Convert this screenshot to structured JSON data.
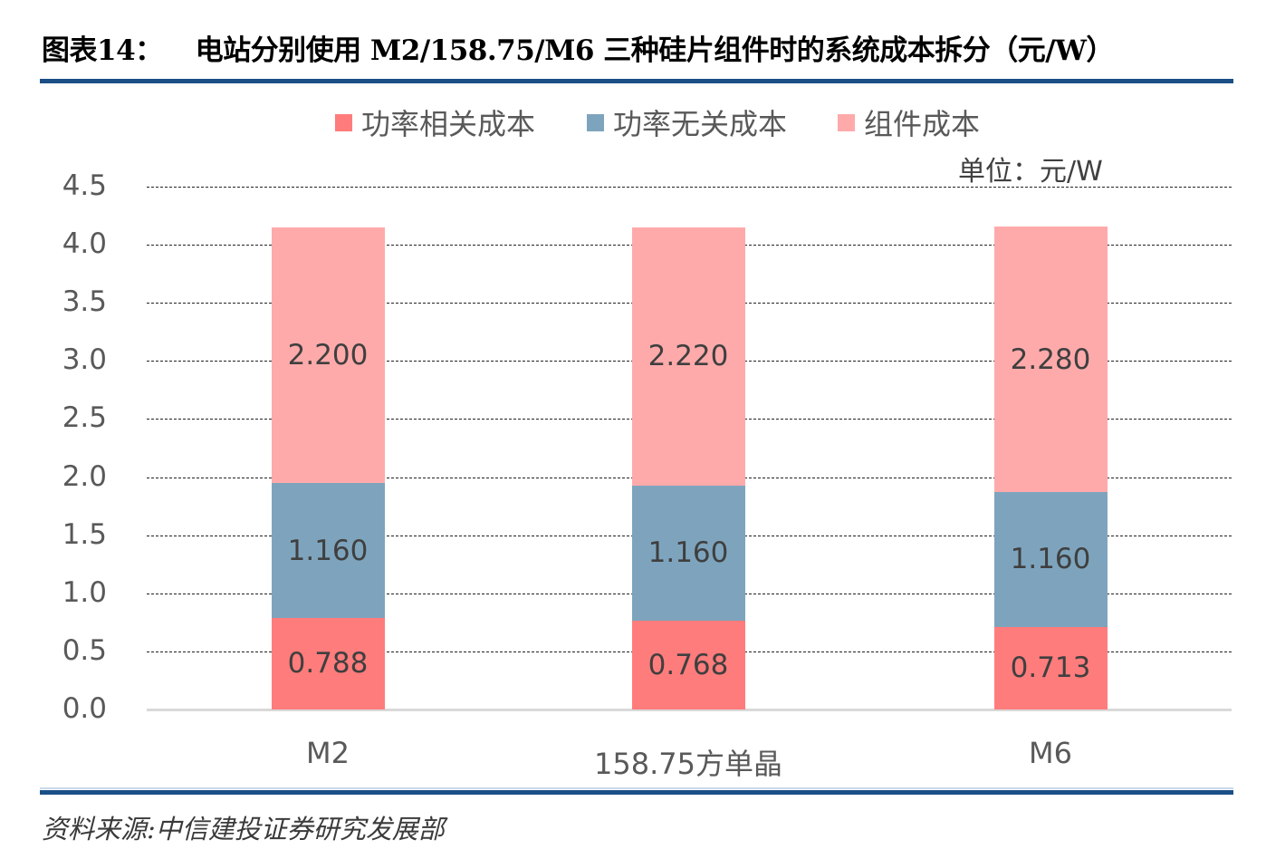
{
  "header": {
    "figure_number": "图表14：",
    "title": "电站分别使用 M2/158.75/M6 三种硅片组件时的系统成本拆分（元/W）"
  },
  "legend": [
    {
      "label": "功率相关成本",
      "color": "#ff7c7c"
    },
    {
      "label": "功率无关成本",
      "color": "#7ea4bd"
    },
    {
      "label": "组件成本",
      "color": "#ffaaaa"
    }
  ],
  "unit_label": "单位：元/W",
  "y_axis": {
    "ticks": [
      "0.0",
      "0.5",
      "1.0",
      "1.5",
      "2.0",
      "2.5",
      "3.0",
      "3.5",
      "4.0",
      "4.5"
    ]
  },
  "bars": [
    {
      "category": "M2",
      "segments": [
        {
          "label": "0.788"
        },
        {
          "label": "1.160"
        },
        {
          "label": "2.200"
        }
      ]
    },
    {
      "category": "158.75方单晶",
      "segments": [
        {
          "label": "0.768"
        },
        {
          "label": "1.160"
        },
        {
          "label": "2.220"
        }
      ]
    },
    {
      "category": "M6",
      "segments": [
        {
          "label": "0.713"
        },
        {
          "label": "1.160"
        },
        {
          "label": "2.280"
        }
      ]
    }
  ],
  "source": "资料来源:中信建投证券研究发展部",
  "chart_data": {
    "type": "bar",
    "stacked": true,
    "title": "图表14： 电站分别使用 M2/158.75/M6 三种硅片组件时的系统成本拆分（元/W）",
    "categories": [
      "M2",
      "158.75方单晶",
      "M6"
    ],
    "series": [
      {
        "name": "功率相关成本",
        "values": [
          0.788,
          0.768,
          0.713
        ],
        "color": "#ff7c7c"
      },
      {
        "name": "功率无关成本",
        "values": [
          1.16,
          1.16,
          1.16
        ],
        "color": "#7ea4bd"
      },
      {
        "name": "组件成本",
        "values": [
          2.2,
          2.22,
          2.28
        ],
        "color": "#ffaaaa"
      }
    ],
    "xlabel": "",
    "ylabel": "单位：元/W",
    "ylim": [
      0,
      4.5
    ],
    "yticks": [
      0,
      0.5,
      1.0,
      1.5,
      2.0,
      2.5,
      3.0,
      3.5,
      4.0,
      4.5
    ],
    "grid": true,
    "legend_position": "top",
    "data_labels": true,
    "source": "资料来源:中信建投证券研究发展部"
  }
}
